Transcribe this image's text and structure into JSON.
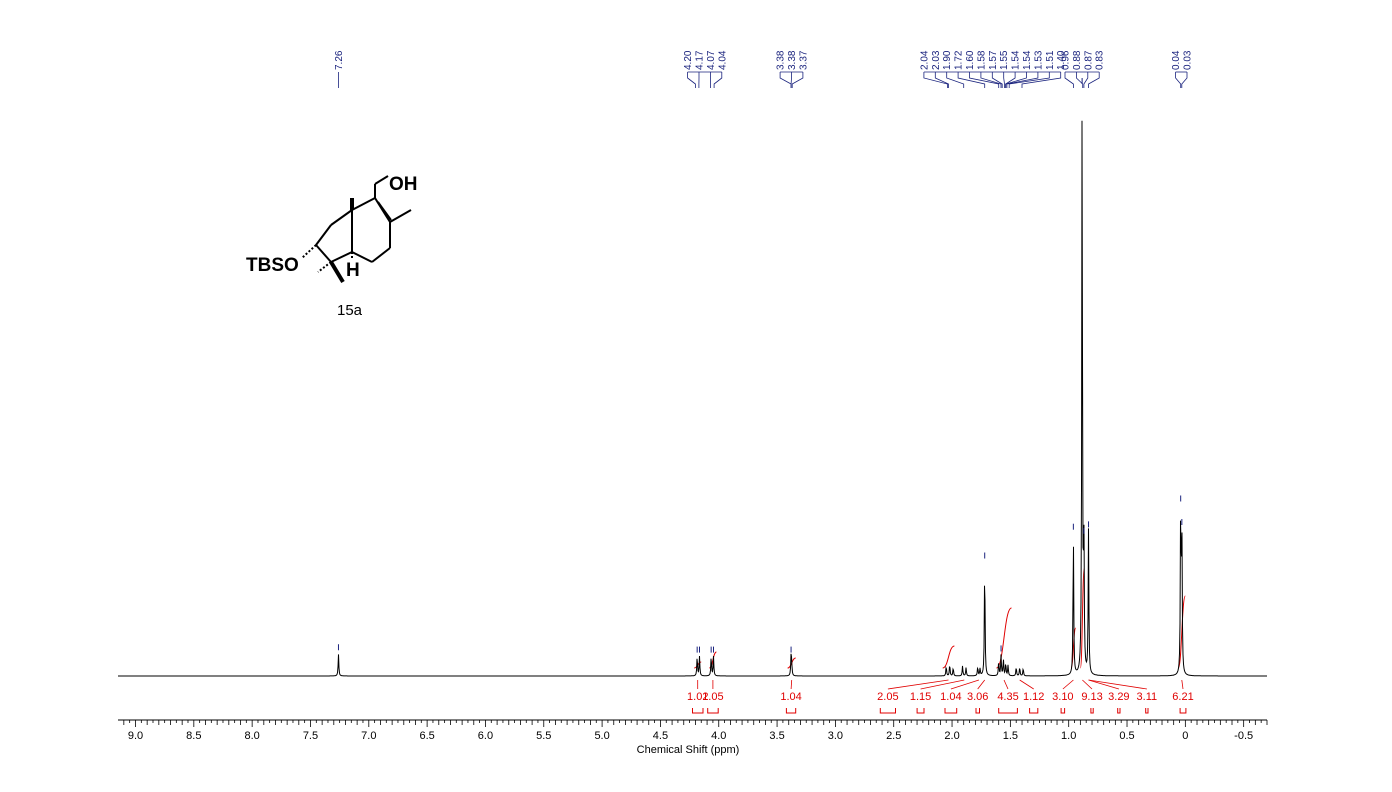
{
  "chart_data": {
    "type": "line",
    "xlabel": "Chemical Shift (ppm)",
    "xlim": [
      9.15,
      -0.7
    ],
    "x_ticks": [
      {
        "value": 9.0,
        "label": "9.0"
      },
      {
        "value": 8.5,
        "label": "8.5"
      },
      {
        "value": 8.0,
        "label": "8.0"
      },
      {
        "value": 7.5,
        "label": "7.5"
      },
      {
        "value": 7.0,
        "label": "7.0"
      },
      {
        "value": 6.5,
        "label": "6.5"
      },
      {
        "value": 6.0,
        "label": "6.0"
      },
      {
        "value": 5.5,
        "label": "5.5"
      },
      {
        "value": 5.0,
        "label": "5.0"
      },
      {
        "value": 4.5,
        "label": "4.5"
      },
      {
        "value": 4.0,
        "label": "4.0"
      },
      {
        "value": 3.5,
        "label": "3.5"
      },
      {
        "value": 3.0,
        "label": "3.0"
      },
      {
        "value": 2.5,
        "label": "2.5"
      },
      {
        "value": 2.0,
        "label": "2.0"
      },
      {
        "value": 1.5,
        "label": "1.5"
      },
      {
        "value": 1.0,
        "label": "1.0"
      },
      {
        "value": 0.5,
        "label": "0.5"
      },
      {
        "value": 0,
        "label": "0"
      },
      {
        "value": -0.5,
        "label": "-0.5"
      }
    ],
    "peak_labels": [
      {
        "group": [
          {
            "ppm": 7.26,
            "label": "7.26"
          }
        ]
      },
      {
        "group": [
          {
            "ppm": 4.2,
            "label": "4.20"
          },
          {
            "ppm": 4.17,
            "label": "4.17"
          },
          {
            "ppm": 4.07,
            "label": "4.07"
          },
          {
            "ppm": 4.04,
            "label": "4.04"
          }
        ]
      },
      {
        "group": [
          {
            "ppm": 3.38,
            "label": "3.38"
          },
          {
            "ppm": 3.38,
            "label": "3.38"
          },
          {
            "ppm": 3.37,
            "label": "3.37"
          }
        ]
      },
      {
        "group": [
          {
            "ppm": 2.04,
            "label": "2.04"
          },
          {
            "ppm": 2.03,
            "label": "2.03"
          },
          {
            "ppm": 1.9,
            "label": "1.90"
          },
          {
            "ppm": 1.72,
            "label": "1.72"
          },
          {
            "ppm": 1.6,
            "label": "1.60"
          },
          {
            "ppm": 1.58,
            "label": "1.58"
          },
          {
            "ppm": 1.57,
            "label": "1.57"
          },
          {
            "ppm": 1.55,
            "label": "1.55"
          },
          {
            "ppm": 1.54,
            "label": "1.54"
          },
          {
            "ppm": 1.54,
            "label": "1.54"
          },
          {
            "ppm": 1.53,
            "label": "1.53"
          },
          {
            "ppm": 1.51,
            "label": "1.51"
          },
          {
            "ppm": 1.4,
            "label": "1.40"
          }
        ]
      },
      {
        "group": [
          {
            "ppm": 0.96,
            "label": "0.96"
          },
          {
            "ppm": 0.88,
            "label": "0.88"
          },
          {
            "ppm": 0.87,
            "label": "0.87"
          },
          {
            "ppm": 0.83,
            "label": "0.83"
          }
        ]
      },
      {
        "group": [
          {
            "ppm": 0.04,
            "label": "0.04"
          },
          {
            "ppm": 0.03,
            "label": "0.03"
          }
        ]
      }
    ],
    "peaks": [
      {
        "ppm": 7.26,
        "height": 0.037
      },
      {
        "ppm": 4.185,
        "height": 0.033
      },
      {
        "ppm": 4.165,
        "height": 0.033
      },
      {
        "ppm": 4.065,
        "height": 0.033
      },
      {
        "ppm": 4.045,
        "height": 0.033
      },
      {
        "ppm": 3.38,
        "height": 0.033
      },
      {
        "ppm": 3.375,
        "height": 0.02
      },
      {
        "ppm": 2.05,
        "height": 0.017
      },
      {
        "ppm": 2.02,
        "height": 0.02
      },
      {
        "ppm": 1.99,
        "height": 0.014
      },
      {
        "ppm": 1.91,
        "height": 0.017
      },
      {
        "ppm": 1.88,
        "height": 0.014
      },
      {
        "ppm": 1.78,
        "height": 0.015
      },
      {
        "ppm": 1.76,
        "height": 0.012
      },
      {
        "ppm": 1.72,
        "height": 0.193
      },
      {
        "ppm": 1.6,
        "height": 0.025
      },
      {
        "ppm": 1.58,
        "height": 0.035
      },
      {
        "ppm": 1.56,
        "height": 0.028
      },
      {
        "ppm": 1.54,
        "height": 0.022
      },
      {
        "ppm": 1.52,
        "height": 0.018
      },
      {
        "ppm": 1.45,
        "height": 0.015
      },
      {
        "ppm": 1.42,
        "height": 0.015
      },
      {
        "ppm": 1.39,
        "height": 0.013
      },
      {
        "ppm": 0.96,
        "height": 0.242
      },
      {
        "ppm": 0.885,
        "height": 1.0
      },
      {
        "ppm": 0.87,
        "height": 0.235
      },
      {
        "ppm": 0.83,
        "height": 0.246
      },
      {
        "ppm": 0.04,
        "height": 0.29
      },
      {
        "ppm": 0.03,
        "height": 0.25
      }
    ],
    "integrals": [
      {
        "value": "1.02",
        "ppm": 4.18,
        "from": 4.21,
        "to": 4.15
      },
      {
        "value": "1.05",
        "ppm": 4.05,
        "from": 4.08,
        "to": 4.02
      },
      {
        "value": "1.04",
        "ppm": 3.38,
        "from": 3.41,
        "to": 3.34
      },
      {
        "value": "2.05",
        "ppm": 2.55,
        "from": 2.08,
        "to": 1.98
      },
      {
        "value": "1.15",
        "ppm": 2.27,
        "from": 1.93,
        "to": 1.86
      },
      {
        "value": "1.04",
        "ppm": 2.01,
        "from": 1.8,
        "to": 1.74
      },
      {
        "value": "3.06",
        "ppm": 1.78,
        "from": 1.74,
        "to": 1.7
      },
      {
        "value": "4.35",
        "ppm": 1.52,
        "from": 1.62,
        "to": 1.49
      },
      {
        "value": "1.12",
        "ppm": 1.3,
        "from": 1.47,
        "to": 1.37
      },
      {
        "value": "3.10",
        "ppm": 1.05,
        "from": 0.98,
        "to": 0.94
      },
      {
        "value": "9.13",
        "ppm": 0.8,
        "from": 0.9,
        "to": 0.865
      },
      {
        "value": "3.29",
        "ppm": 0.57,
        "from": 0.85,
        "to": 0.81
      },
      {
        "value": "3.11",
        "ppm": 0.33,
        "from": 0.85,
        "to": 0.81
      },
      {
        "value": "6.21",
        "ppm": 0.02,
        "from": 0.06,
        "to": 0.0
      }
    ],
    "integral_brackets": [
      {
        "ppm": 4.18,
        "width": 0.09
      },
      {
        "ppm": 4.05,
        "width": 0.09
      },
      {
        "ppm": 3.38,
        "width": 0.08
      },
      {
        "ppm": 2.55,
        "width": 0.13
      },
      {
        "ppm": 2.27,
        "width": 0.06
      },
      {
        "ppm": 2.01,
        "width": 0.1
      },
      {
        "ppm": 1.78,
        "width": 0.03
      },
      {
        "ppm": 1.52,
        "width": 0.16
      },
      {
        "ppm": 1.3,
        "width": 0.07
      },
      {
        "ppm": 1.05,
        "width": 0.03
      },
      {
        "ppm": 0.8,
        "width": 0.02
      },
      {
        "ppm": 0.57,
        "width": 0.02
      },
      {
        "ppm": 0.33,
        "width": 0.02
      },
      {
        "ppm": 0.02,
        "width": 0.05
      }
    ]
  },
  "molecule": {
    "compound_id": "15a",
    "labels": {
      "tbso": "TBSO",
      "oh": "OH",
      "h": "H"
    }
  },
  "colors": {
    "spectrum": "#000000",
    "peak_labels": "#1a237e",
    "integrals": "#e00000"
  }
}
